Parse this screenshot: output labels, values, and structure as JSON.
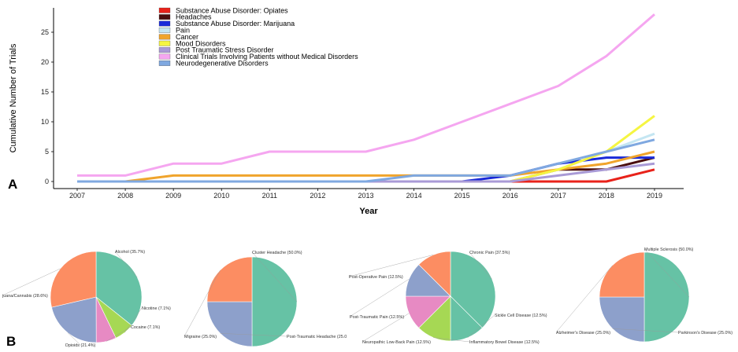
{
  "panels": {
    "a": "A",
    "b": "B"
  },
  "chart_data": [
    {
      "type": "line",
      "xlabel": "Year",
      "ylabel": "Cumulative Number of Trials",
      "x": [
        2007,
        2008,
        2009,
        2010,
        2011,
        2012,
        2013,
        2014,
        2015,
        2016,
        2017,
        2018,
        2019
      ],
      "xlim": [
        2007,
        2019
      ],
      "ylim": [
        0,
        30
      ],
      "yticks": [
        0,
        5,
        10,
        15,
        20,
        25
      ],
      "grid": false,
      "legend_position": "top-left",
      "series": [
        {
          "name": "Substance Abuse Disorder: Opiates",
          "color": "#e8221a",
          "values": [
            0,
            0,
            0,
            0,
            0,
            0,
            0,
            0,
            0,
            0,
            0,
            0,
            2
          ]
        },
        {
          "name": "Headaches",
          "color": "#4a0e0e",
          "values": [
            0,
            0,
            0,
            0,
            0,
            0,
            0,
            0,
            0,
            0,
            2,
            2,
            4
          ]
        },
        {
          "name": "Substance Abuse Disorder: Marijuana",
          "color": "#1a2ad8",
          "values": [
            0,
            0,
            0,
            0,
            0,
            0,
            0,
            0,
            0,
            1,
            3,
            4,
            4
          ]
        },
        {
          "name": "Pain",
          "color": "#c4e6f2",
          "values": [
            0,
            0,
            0,
            0,
            0,
            0,
            0,
            0,
            0,
            0,
            2,
            5,
            8
          ]
        },
        {
          "name": "Cancer",
          "color": "#f0a42c",
          "values": [
            0,
            0,
            1,
            1,
            1,
            1,
            1,
            1,
            1,
            1,
            2,
            3,
            5
          ]
        },
        {
          "name": "Mood Disorders",
          "color": "#f5f542",
          "values": [
            0,
            0,
            0,
            0,
            0,
            0,
            0,
            0,
            0,
            0,
            2,
            5,
            11
          ]
        },
        {
          "name": "Post Traumatic Stress Disorder",
          "color": "#a99ad6",
          "values": [
            0,
            0,
            0,
            0,
            0,
            0,
            0,
            0,
            0,
            0,
            1,
            2,
            3
          ]
        },
        {
          "name": "Clinical Trials Involving Patients without Medical Disorders",
          "color": "#f5a6f0",
          "values": [
            1,
            1,
            3,
            3,
            5,
            5,
            5,
            7,
            10,
            13,
            16,
            21,
            28
          ]
        },
        {
          "name": "Neurodegenerative Disorders",
          "color": "#7fa8e0",
          "values": [
            0,
            0,
            0,
            0,
            0,
            0,
            0,
            1,
            1,
            1,
            3,
            5,
            7
          ]
        }
      ]
    },
    {
      "type": "pie",
      "slices": [
        {
          "label": "Alcohol (35.7%)",
          "value": 35.7,
          "color": "#66c2a5"
        },
        {
          "label": "Nicotine (7.1%)",
          "value": 7.1,
          "color": "#a6d854"
        },
        {
          "label": "Cocaine (7.1%)",
          "value": 7.1,
          "color": "#e78ac3"
        },
        {
          "label": "Opioids (21.4%)",
          "value": 21.4,
          "color": "#8da0cb"
        },
        {
          "label": "juana/Cannabis (28.6%)",
          "value": 28.6,
          "color": "#fc8d62"
        }
      ]
    },
    {
      "type": "pie",
      "slices": [
        {
          "label": "Cluster Headache (50.0%)",
          "value": 50.0,
          "color": "#66c2a5"
        },
        {
          "label": "Post-Traumatic Headache (25.0",
          "value": 25.0,
          "color": "#8da0cb"
        },
        {
          "label": "Migraine (25.0%)",
          "value": 25.0,
          "color": "#fc8d62"
        }
      ]
    },
    {
      "type": "pie",
      "slices": [
        {
          "label": "Chronic Pain (37.5%)",
          "value": 37.5,
          "color": "#66c2a5"
        },
        {
          "label": "Sickle Cell Disease (12.5%)",
          "value": 12.5,
          "color": "#66c2a5"
        },
        {
          "label": "Inflammatory Bowel Disease (12.5%)",
          "value": 12.5,
          "color": "#a6d854"
        },
        {
          "label": "Neuropathic Low-Back Pain (12.5%)",
          "value": 12.5,
          "color": "#e78ac3"
        },
        {
          "label": "Post-Traumatic Pain (12.5%)",
          "value": 12.5,
          "color": "#8da0cb"
        },
        {
          "label": "Post-Operative Pain (12.5%)",
          "value": 12.5,
          "color": "#fc8d62"
        }
      ]
    },
    {
      "type": "pie",
      "slices": [
        {
          "label": "Multiple Sclerosis (50.0%)",
          "value": 50.0,
          "color": "#66c2a5"
        },
        {
          "label": "Parkinson's Disease (25.0%)",
          "value": 25.0,
          "color": "#8da0cb"
        },
        {
          "label": "Alzheimer's Disease (25.0%)",
          "value": 25.0,
          "color": "#fc8d62"
        }
      ]
    }
  ]
}
